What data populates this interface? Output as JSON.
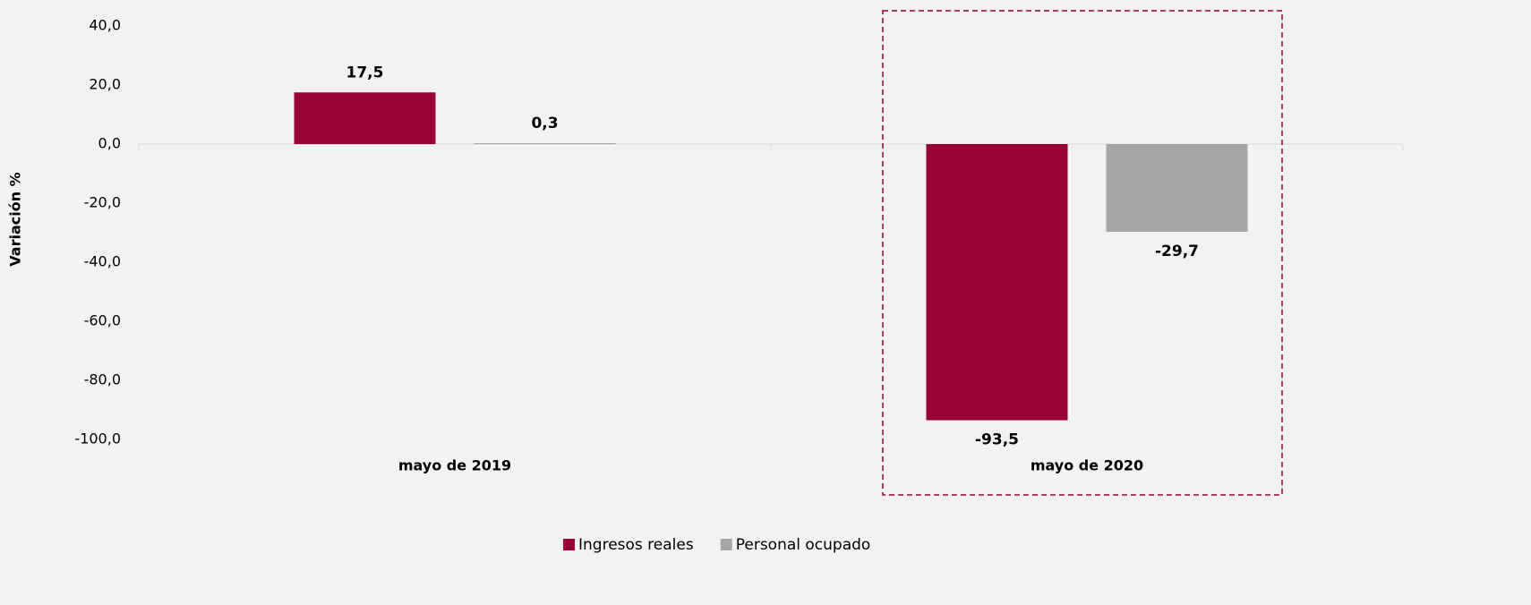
{
  "chart_data": {
    "type": "bar",
    "y_label": "Variación %",
    "categories": [
      "mayo de 2019",
      "mayo de 2020"
    ],
    "series": [
      {
        "name": "Ingresos reales",
        "color": "#990033",
        "values": [
          17.5,
          -93.5
        ],
        "value_labels": [
          "17,5",
          "-93,5"
        ]
      },
      {
        "name": "Personal ocupado",
        "color": "#a6a6a6",
        "values": [
          0.3,
          -29.7
        ],
        "value_labels": [
          "0,3",
          "-29,7"
        ]
      }
    ],
    "ylim": [
      -100,
      40
    ],
    "yticks": [
      {
        "value": 40,
        "label": "40,0"
      },
      {
        "value": 20,
        "label": "20,0"
      },
      {
        "value": 0,
        "label": "0,0"
      },
      {
        "value": -20,
        "label": "-20,0"
      },
      {
        "value": -40,
        "label": "-40,0"
      },
      {
        "value": -60,
        "label": "-60,0"
      },
      {
        "value": -80,
        "label": "-80,0"
      },
      {
        "value": -100,
        "label": "-100,0"
      }
    ],
    "grid": false
  }
}
